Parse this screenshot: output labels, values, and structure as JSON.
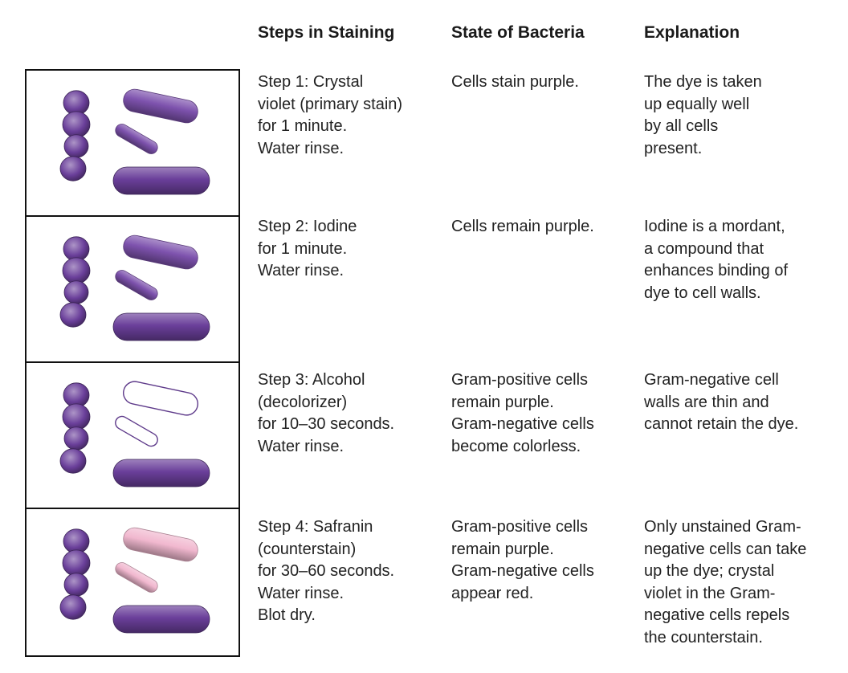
{
  "headers": {
    "steps": "Steps in Staining",
    "state": "State of Bacteria",
    "explanation": "Explanation"
  },
  "rows": [
    {
      "stage": "crystal-violet",
      "step_lines": [
        "Step 1: Crystal",
        "violet (primary stain)",
        "for 1 minute.",
        "Water rinse."
      ],
      "state_lines": [
        "Cells stain purple."
      ],
      "explanation_lines": [
        "The dye is taken",
        "up equally well",
        "by all cells",
        "present."
      ]
    },
    {
      "stage": "iodine",
      "step_lines": [
        "Step 2: Iodine",
        "for 1 minute.",
        "Water rinse."
      ],
      "state_lines": [
        "Cells remain purple."
      ],
      "explanation_lines": [
        "Iodine is a mordant,",
        "a compound that",
        "enhances binding of",
        "dye to cell walls."
      ]
    },
    {
      "stage": "alcohol",
      "step_lines": [
        "Step 3: Alcohol",
        "(decolorizer)",
        "for 10–30 seconds.",
        "Water rinse."
      ],
      "state_lines": [
        "Gram-positive cells",
        "remain purple.",
        "Gram-negative cells",
        "become colorless."
      ],
      "explanation_lines": [
        "Gram-negative cell",
        "walls are thin and",
        "cannot retain the dye."
      ]
    },
    {
      "stage": "safranin",
      "step_lines": [
        "Step 4: Safranin",
        "(counterstain)",
        "for 30–60 seconds.",
        "Water rinse.",
        "Blot dry."
      ],
      "state_lines": [
        "Gram-positive cells",
        "remain purple.",
        "Gram-negative cells",
        "appear red."
      ],
      "explanation_lines": [
        "Only unstained Gram-",
        "negative cells can take",
        "up the dye; crystal",
        "violet in the Gram-",
        "negative cells repels",
        "the counterstain."
      ]
    }
  ],
  "colors": {
    "gram_positive": "#6a3f9a",
    "gram_negative_stained": "#7d52ad",
    "gram_negative_colorless": "#ffffff",
    "gram_negative_safranin": "#f1b8cf",
    "outline": "#5e3a8a",
    "border": "#111111",
    "text": "#222222"
  }
}
